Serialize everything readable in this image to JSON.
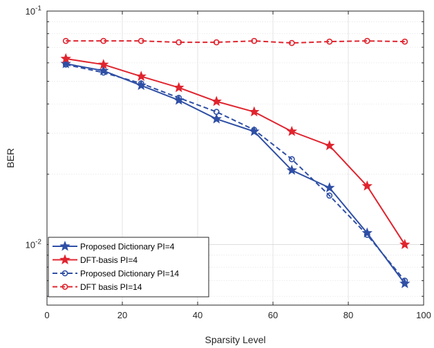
{
  "chart_data": {
    "type": "line",
    "xlabel": "Sparsity Level",
    "ylabel": "BER",
    "xlim": [
      0,
      100
    ],
    "ylim": [
      0.0055,
      0.1
    ],
    "yscale": "log",
    "grid": true,
    "legend_position": "bottom-left",
    "x_ticks": [
      0,
      20,
      40,
      60,
      80,
      100
    ],
    "x_tick_labels": [
      "0",
      "20",
      "40",
      "60",
      "80",
      "100"
    ],
    "y_ticks": [
      0.01,
      0.1
    ],
    "y_tick_labels": [
      {
        "base": "10",
        "exp": "-2"
      },
      {
        "base": "10",
        "exp": "-1"
      }
    ],
    "x": [
      5,
      15,
      25,
      35,
      45,
      55,
      65,
      75,
      85,
      95
    ],
    "series": [
      {
        "name": "Proposed Dictionary PI=4",
        "color": "#2f4fa5",
        "dash": "solid",
        "marker": "star",
        "values": [
          0.0595,
          0.0555,
          0.048,
          0.0415,
          0.0345,
          0.0305,
          0.0208,
          0.0175,
          0.0112,
          0.0068
        ]
      },
      {
        "name": "DFT-basis PI=4",
        "color": "#e0242e",
        "dash": "solid",
        "marker": "star",
        "values": [
          0.0625,
          0.059,
          0.0525,
          0.047,
          0.041,
          0.037,
          0.0305,
          0.0265,
          0.0178,
          0.01
        ]
      },
      {
        "name": "Proposed Dictionary PI=14",
        "color": "#2f4fa5",
        "dash": "dashed",
        "marker": "circle",
        "values": [
          0.059,
          0.0545,
          0.049,
          0.0425,
          0.037,
          0.031,
          0.0232,
          0.0162,
          0.011,
          0.007
        ]
      },
      {
        "name": "DFT basis PI=14",
        "color": "#e0242e",
        "dash": "dashed",
        "marker": "circle",
        "values": [
          0.0745,
          0.0745,
          0.0745,
          0.0735,
          0.0735,
          0.0745,
          0.073,
          0.074,
          0.0745,
          0.074
        ]
      }
    ]
  }
}
